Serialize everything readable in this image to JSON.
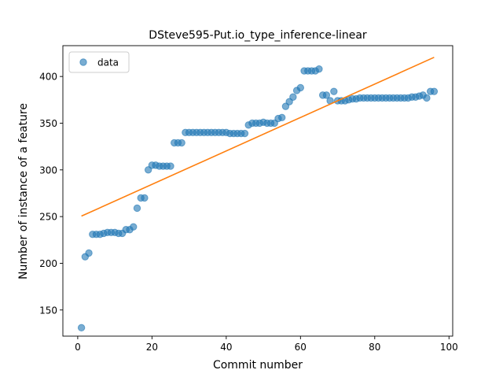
{
  "chart_data": {
    "type": "scatter",
    "title": "DSteve595-Put.io_type_inference-linear",
    "xlabel": "Commit number",
    "ylabel": "Number of instance of a feature",
    "xlim": [
      -4,
      101
    ],
    "ylim": [
      122,
      433
    ],
    "xticks": [
      0,
      20,
      40,
      60,
      80,
      100
    ],
    "yticks": [
      150,
      200,
      250,
      300,
      350,
      400
    ],
    "grid": false,
    "legend_position": "upper-left",
    "series": [
      {
        "name": "data",
        "kind": "scatter",
        "color": "#1f77b4",
        "points": [
          [
            1,
            131
          ],
          [
            2,
            207
          ],
          [
            3,
            211
          ],
          [
            4,
            231
          ],
          [
            5,
            231
          ],
          [
            6,
            231
          ],
          [
            7,
            232
          ],
          [
            8,
            233
          ],
          [
            9,
            233
          ],
          [
            10,
            233
          ],
          [
            11,
            232
          ],
          [
            12,
            232
          ],
          [
            13,
            236
          ],
          [
            14,
            236
          ],
          [
            15,
            239
          ],
          [
            16,
            259
          ],
          [
            17,
            270
          ],
          [
            18,
            270
          ],
          [
            19,
            300
          ],
          [
            20,
            305
          ],
          [
            21,
            305
          ],
          [
            22,
            304
          ],
          [
            23,
            304
          ],
          [
            24,
            304
          ],
          [
            25,
            304
          ],
          [
            26,
            329
          ],
          [
            27,
            329
          ],
          [
            28,
            329
          ],
          [
            29,
            340
          ],
          [
            30,
            340
          ],
          [
            31,
            340
          ],
          [
            32,
            340
          ],
          [
            33,
            340
          ],
          [
            34,
            340
          ],
          [
            35,
            340
          ],
          [
            36,
            340
          ],
          [
            37,
            340
          ],
          [
            38,
            340
          ],
          [
            39,
            340
          ],
          [
            40,
            340
          ],
          [
            41,
            339
          ],
          [
            42,
            339
          ],
          [
            43,
            339
          ],
          [
            44,
            339
          ],
          [
            45,
            339
          ],
          [
            46,
            348
          ],
          [
            47,
            350
          ],
          [
            48,
            350
          ],
          [
            49,
            350
          ],
          [
            50,
            351
          ],
          [
            51,
            350
          ],
          [
            52,
            350
          ],
          [
            53,
            350
          ],
          [
            54,
            355
          ],
          [
            55,
            356
          ],
          [
            56,
            368
          ],
          [
            57,
            373
          ],
          [
            58,
            378
          ],
          [
            59,
            385
          ],
          [
            60,
            388
          ],
          [
            61,
            406
          ],
          [
            62,
            406
          ],
          [
            63,
            406
          ],
          [
            64,
            406
          ],
          [
            65,
            408
          ],
          [
            66,
            380
          ],
          [
            67,
            380
          ],
          [
            68,
            374
          ],
          [
            69,
            384
          ],
          [
            70,
            374
          ],
          [
            71,
            374
          ],
          [
            72,
            374
          ],
          [
            73,
            375
          ],
          [
            74,
            376
          ],
          [
            75,
            376
          ],
          [
            76,
            377
          ],
          [
            77,
            377
          ],
          [
            78,
            377
          ],
          [
            79,
            377
          ],
          [
            80,
            377
          ],
          [
            81,
            377
          ],
          [
            82,
            377
          ],
          [
            83,
            377
          ],
          [
            84,
            377
          ],
          [
            85,
            377
          ],
          [
            86,
            377
          ],
          [
            87,
            377
          ],
          [
            88,
            377
          ],
          [
            89,
            377
          ],
          [
            90,
            378
          ],
          [
            91,
            378
          ],
          [
            92,
            379
          ],
          [
            93,
            380
          ],
          [
            94,
            377
          ],
          [
            95,
            384
          ],
          [
            96,
            384
          ]
        ]
      },
      {
        "name": "",
        "kind": "line",
        "color": "#ff7f0e",
        "points": [
          [
            1,
            250.5
          ],
          [
            96,
            420.5
          ]
        ]
      }
    ]
  }
}
